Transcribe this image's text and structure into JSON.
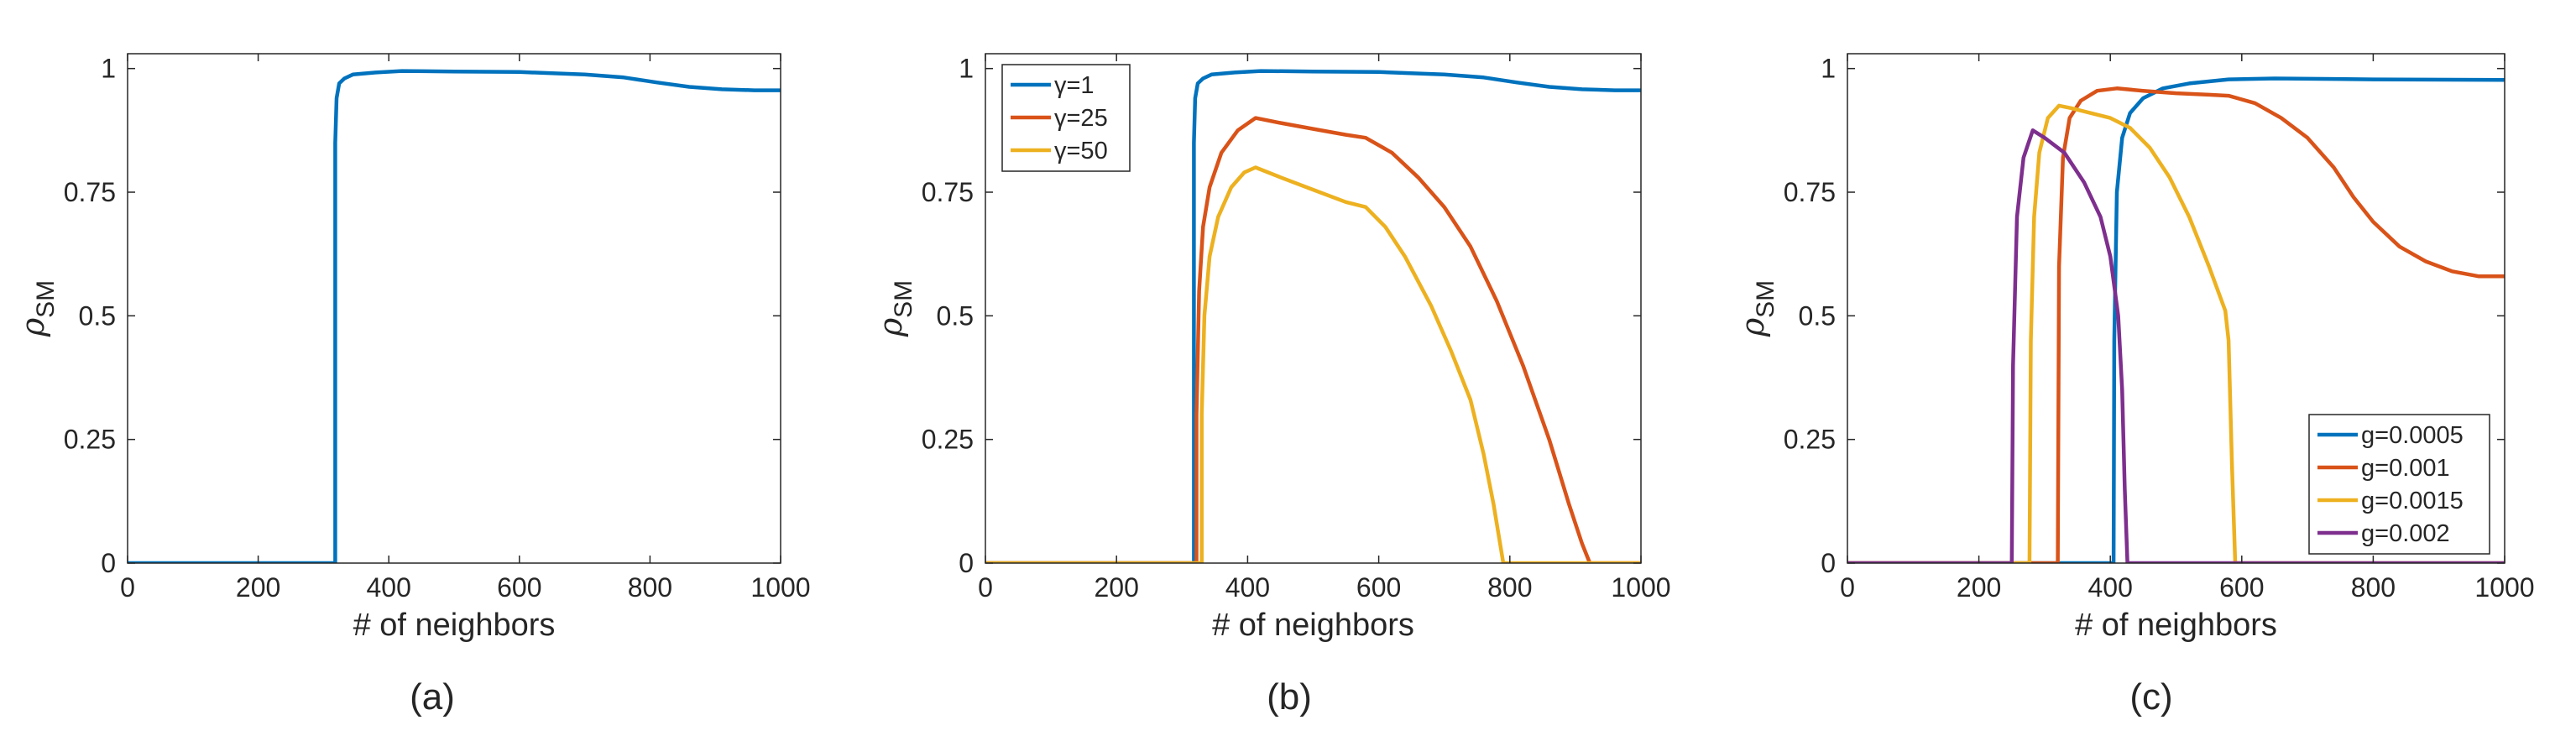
{
  "chart_data": [
    {
      "type": "line",
      "panel_label": "(a)",
      "xlabel": "# of neighbors",
      "ylabel_main": "ρ",
      "ylabel_sub": "SM",
      "xlim": [
        0,
        1000
      ],
      "ylim": [
        0,
        1.03
      ],
      "xticks": [
        0,
        200,
        400,
        600,
        800,
        1000
      ],
      "xtick_labels": [
        "0",
        "200",
        "400",
        "600",
        "800",
        "1000"
      ],
      "yticks": [
        0,
        0.25,
        0.5,
        0.75,
        1
      ],
      "ytick_labels": [
        "0",
        "0.25",
        "0.5",
        "0.75",
        "1"
      ],
      "legend": null,
      "series": [
        {
          "name": "",
          "color": "#0072BD",
          "points": [
            [
              0,
              0
            ],
            [
              318,
              0
            ],
            [
              318,
              0.85
            ],
            [
              320,
              0.94
            ],
            [
              324,
              0.97
            ],
            [
              332,
              0.98
            ],
            [
              345,
              0.988
            ],
            [
              380,
              0.992
            ],
            [
              420,
              0.995
            ],
            [
              500,
              0.994
            ],
            [
              600,
              0.993
            ],
            [
              700,
              0.988
            ],
            [
              760,
              0.982
            ],
            [
              810,
              0.972
            ],
            [
              860,
              0.963
            ],
            [
              910,
              0.958
            ],
            [
              960,
              0.956
            ],
            [
              1000,
              0.956
            ]
          ]
        }
      ]
    },
    {
      "type": "line",
      "panel_label": "(b)",
      "xlabel": "# of neighbors",
      "ylabel_main": "ρ",
      "ylabel_sub": "SM",
      "xlim": [
        0,
        1000
      ],
      "ylim": [
        0,
        1.03
      ],
      "xticks": [
        0,
        200,
        400,
        600,
        800,
        1000
      ],
      "xtick_labels": [
        "0",
        "200",
        "400",
        "600",
        "800",
        "1000"
      ],
      "yticks": [
        0,
        0.25,
        0.5,
        0.75,
        1
      ],
      "ytick_labels": [
        "0",
        "0.25",
        "0.5",
        "0.75",
        "1"
      ],
      "legend": "top-left",
      "series": [
        {
          "name": "γ=1",
          "color": "#0072BD",
          "points": [
            [
              0,
              0
            ],
            [
              318,
              0
            ],
            [
              318,
              0.85
            ],
            [
              320,
              0.94
            ],
            [
              324,
              0.97
            ],
            [
              332,
              0.98
            ],
            [
              345,
              0.988
            ],
            [
              380,
              0.992
            ],
            [
              420,
              0.995
            ],
            [
              500,
              0.994
            ],
            [
              600,
              0.993
            ],
            [
              700,
              0.988
            ],
            [
              760,
              0.982
            ],
            [
              810,
              0.972
            ],
            [
              860,
              0.963
            ],
            [
              910,
              0.958
            ],
            [
              960,
              0.956
            ],
            [
              1000,
              0.956
            ]
          ]
        },
        {
          "name": "γ=25",
          "color": "#D95319",
          "points": [
            [
              0,
              0
            ],
            [
              322,
              0
            ],
            [
              322,
              0.3
            ],
            [
              326,
              0.55
            ],
            [
              332,
              0.68
            ],
            [
              342,
              0.76
            ],
            [
              360,
              0.83
            ],
            [
              385,
              0.875
            ],
            [
              412,
              0.9
            ],
            [
              450,
              0.89
            ],
            [
              500,
              0.878
            ],
            [
              550,
              0.866
            ],
            [
              580,
              0.86
            ],
            [
              620,
              0.83
            ],
            [
              660,
              0.78
            ],
            [
              700,
              0.72
            ],
            [
              740,
              0.64
            ],
            [
              780,
              0.53
            ],
            [
              820,
              0.4
            ],
            [
              860,
              0.25
            ],
            [
              890,
              0.12
            ],
            [
              910,
              0.04
            ],
            [
              922,
              0
            ],
            [
              1000,
              0
            ]
          ]
        },
        {
          "name": "γ=50",
          "color": "#EDB120",
          "points": [
            [
              0,
              0
            ],
            [
              330,
              0
            ],
            [
              330,
              0.3
            ],
            [
              334,
              0.5
            ],
            [
              342,
              0.62
            ],
            [
              355,
              0.7
            ],
            [
              375,
              0.76
            ],
            [
              395,
              0.79
            ],
            [
              412,
              0.8
            ],
            [
              450,
              0.78
            ],
            [
              500,
              0.755
            ],
            [
              550,
              0.73
            ],
            [
              580,
              0.72
            ],
            [
              610,
              0.68
            ],
            [
              640,
              0.62
            ],
            [
              680,
              0.52
            ],
            [
              710,
              0.43
            ],
            [
              740,
              0.33
            ],
            [
              760,
              0.22
            ],
            [
              775,
              0.12
            ],
            [
              785,
              0.04
            ],
            [
              790,
              0
            ],
            [
              1000,
              0
            ]
          ]
        }
      ]
    },
    {
      "type": "line",
      "panel_label": "(c)",
      "xlabel": "# of neighbors",
      "ylabel_main": "ρ",
      "ylabel_sub": "SM",
      "xlim": [
        0,
        1000
      ],
      "ylim": [
        0,
        1.03
      ],
      "xticks": [
        0,
        200,
        400,
        600,
        800,
        1000
      ],
      "xtick_labels": [
        "0",
        "200",
        "400",
        "600",
        "800",
        "1000"
      ],
      "yticks": [
        0,
        0.25,
        0.5,
        0.75,
        1
      ],
      "ytick_labels": [
        "0",
        "0.25",
        "0.5",
        "0.75",
        "1"
      ],
      "legend": "bottom-right",
      "series": [
        {
          "name": "g=0.0005",
          "color": "#0072BD",
          "points": [
            [
              0,
              0
            ],
            [
              405,
              0
            ],
            [
              406,
              0.45
            ],
            [
              410,
              0.75
            ],
            [
              418,
              0.86
            ],
            [
              430,
              0.91
            ],
            [
              450,
              0.94
            ],
            [
              480,
              0.96
            ],
            [
              520,
              0.97
            ],
            [
              580,
              0.978
            ],
            [
              650,
              0.98
            ],
            [
              800,
              0.978
            ],
            [
              1000,
              0.977
            ]
          ]
        },
        {
          "name": "g=0.001",
          "color": "#D95319",
          "points": [
            [
              0,
              0
            ],
            [
              320,
              0
            ],
            [
              322,
              0.6
            ],
            [
              328,
              0.82
            ],
            [
              338,
              0.9
            ],
            [
              355,
              0.935
            ],
            [
              380,
              0.955
            ],
            [
              410,
              0.96
            ],
            [
              450,
              0.955
            ],
            [
              500,
              0.95
            ],
            [
              550,
              0.947
            ],
            [
              580,
              0.945
            ],
            [
              620,
              0.93
            ],
            [
              660,
              0.9
            ],
            [
              700,
              0.86
            ],
            [
              740,
              0.8
            ],
            [
              770,
              0.74
            ],
            [
              800,
              0.69
            ],
            [
              840,
              0.64
            ],
            [
              880,
              0.61
            ],
            [
              920,
              0.59
            ],
            [
              960,
              0.58
            ],
            [
              1000,
              0.58
            ]
          ]
        },
        {
          "name": "g=0.0015",
          "color": "#EDB120",
          "points": [
            [
              0,
              0
            ],
            [
              277,
              0
            ],
            [
              279,
              0.45
            ],
            [
              284,
              0.7
            ],
            [
              292,
              0.83
            ],
            [
              305,
              0.9
            ],
            [
              322,
              0.925
            ],
            [
              340,
              0.92
            ],
            [
              370,
              0.91
            ],
            [
              400,
              0.9
            ],
            [
              430,
              0.88
            ],
            [
              460,
              0.84
            ],
            [
              490,
              0.78
            ],
            [
              520,
              0.7
            ],
            [
              550,
              0.6
            ],
            [
              575,
              0.51
            ],
            [
              580,
              0.45
            ],
            [
              585,
              0.2
            ],
            [
              590,
              0
            ],
            [
              1000,
              0
            ]
          ]
        },
        {
          "name": "g=0.002",
          "color": "#7E2F8E",
          "points": [
            [
              0,
              0
            ],
            [
              250,
              0
            ],
            [
              252,
              0.4
            ],
            [
              258,
              0.7
            ],
            [
              268,
              0.82
            ],
            [
              282,
              0.875
            ],
            [
              300,
              0.86
            ],
            [
              330,
              0.83
            ],
            [
              360,
              0.77
            ],
            [
              385,
              0.7
            ],
            [
              400,
              0.62
            ],
            [
              412,
              0.5
            ],
            [
              418,
              0.35
            ],
            [
              422,
              0.15
            ],
            [
              426,
              0
            ],
            [
              1000,
              0
            ]
          ]
        }
      ]
    }
  ]
}
